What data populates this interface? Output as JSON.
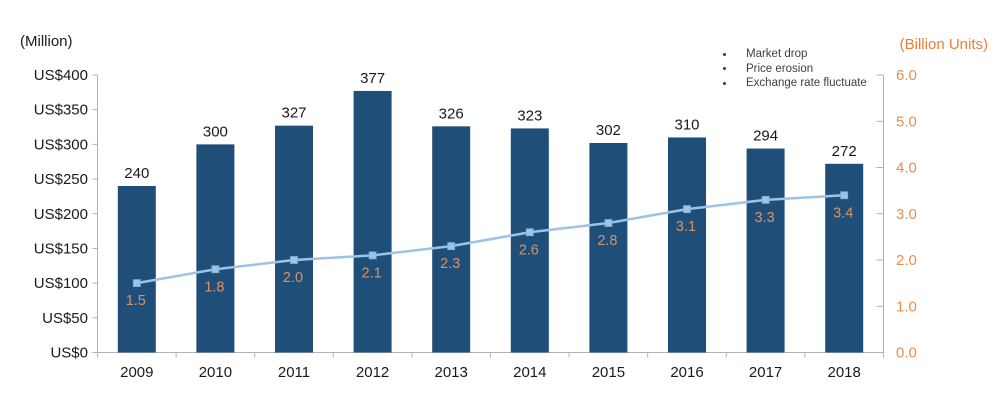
{
  "chart_data": {
    "type": "combo",
    "categories": [
      "2009",
      "2010",
      "2011",
      "2012",
      "2013",
      "2014",
      "2015",
      "2016",
      "2017",
      "2018"
    ],
    "series": [
      {
        "type": "bar",
        "axis": "left",
        "color": "#1F4E79",
        "values": [
          240,
          300,
          327,
          377,
          326,
          323,
          302,
          310,
          294,
          272
        ],
        "labels": [
          "240",
          "300",
          "327",
          "377",
          "326",
          "323",
          "302",
          "310",
          "294",
          "272"
        ],
        "label_color": "#1a1a1a"
      },
      {
        "type": "line",
        "axis": "right",
        "color": "#9DC3E6",
        "marker": "square",
        "marker_color": "#9DC3E6",
        "values": [
          1.5,
          1.8,
          2.0,
          2.1,
          2.3,
          2.6,
          2.8,
          3.1,
          3.3,
          3.4
        ],
        "labels": [
          "1.5",
          "1.8",
          "2.0",
          "2.1",
          "2.3",
          "2.6",
          "2.8",
          "3.1",
          "3.3",
          "3.4"
        ],
        "label_color": "#D69468"
      }
    ],
    "left_axis": {
      "label": "(Million)",
      "min": 0,
      "max": 400,
      "step": 50,
      "tick_labels": [
        "US$0",
        "US$50",
        "US$100",
        "US$150",
        "US$200",
        "US$250",
        "US$300",
        "US$350",
        "US$400"
      ],
      "text_color": "#1a1a1a"
    },
    "right_axis": {
      "label": "(Billion Units)",
      "min": 0,
      "max": 6,
      "step": 1,
      "tick_labels": [
        "0.0",
        "1.0",
        "2.0",
        "3.0",
        "4.0",
        "5.0",
        "6.0"
      ],
      "text_color": "#E59050",
      "label_color": "#ED7D31"
    },
    "annotations": {
      "items": [
        "Market drop",
        "Price erosion",
        "Exchange rate fluctuate"
      ],
      "text_color": "#3F3F3F"
    },
    "axis_line_color": "#B3B3B3",
    "grid": false,
    "legend_position": "none"
  }
}
